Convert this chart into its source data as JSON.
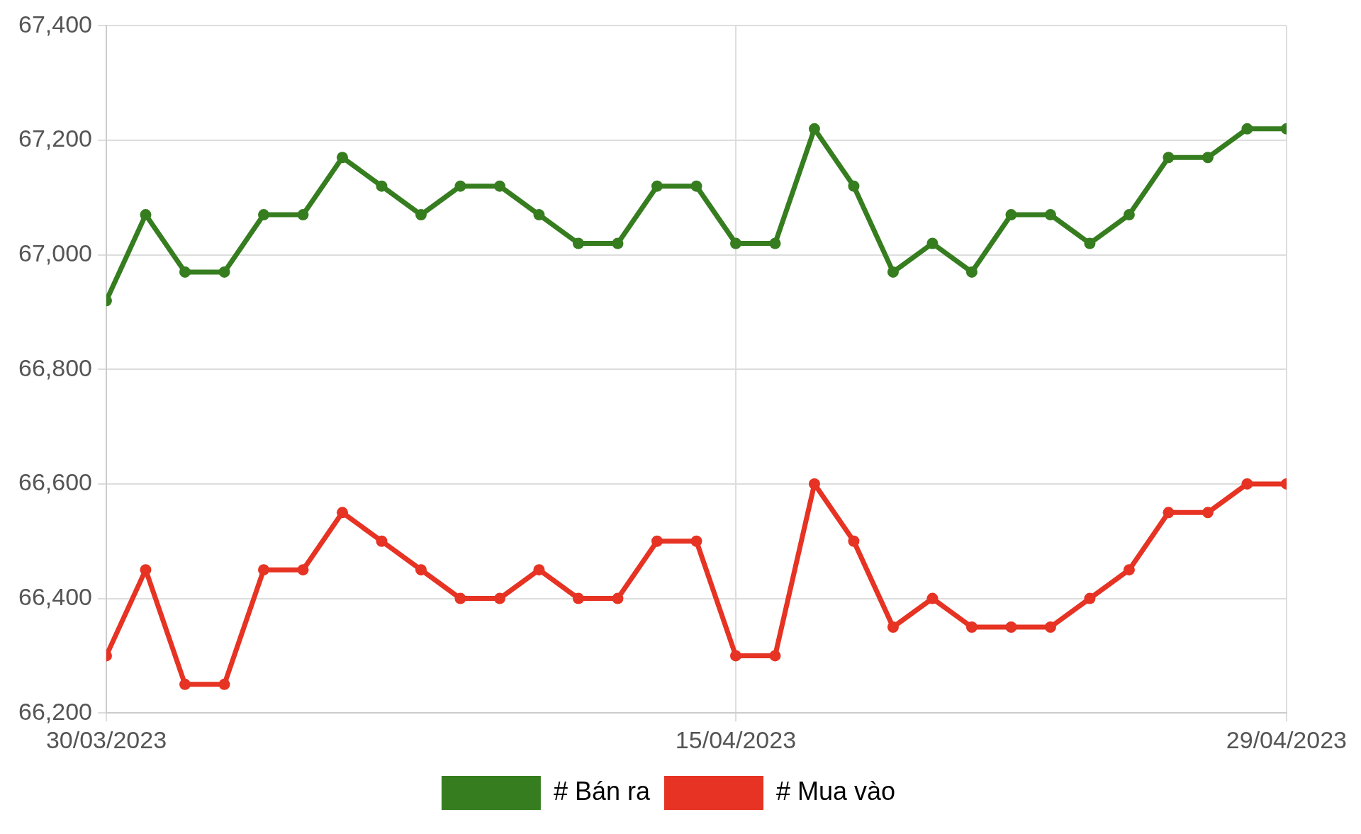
{
  "chart_data": {
    "type": "line",
    "x": [
      "2023-03-30",
      "2023-03-31",
      "2023-04-01",
      "2023-04-02",
      "2023-04-03",
      "2023-04-04",
      "2023-04-05",
      "2023-04-06",
      "2023-04-07",
      "2023-04-08",
      "2023-04-09",
      "2023-04-10",
      "2023-04-11",
      "2023-04-12",
      "2023-04-13",
      "2023-04-14",
      "2023-04-15",
      "2023-04-16",
      "2023-04-17",
      "2023-04-18",
      "2023-04-19",
      "2023-04-20",
      "2023-04-21",
      "2023-04-22",
      "2023-04-23",
      "2023-04-24",
      "2023-04-25",
      "2023-04-26",
      "2023-04-27",
      "2023-04-28",
      "2023-04-29"
    ],
    "series": [
      {
        "name": "# Bán ra",
        "color": "#367d1f",
        "values": [
          66920,
          67070,
          66970,
          66970,
          67070,
          67070,
          67170,
          67120,
          67070,
          67120,
          67120,
          67070,
          67020,
          67020,
          67120,
          67120,
          67020,
          67020,
          67220,
          67120,
          66970,
          67020,
          66970,
          67070,
          67070,
          67020,
          67070,
          67170,
          67170,
          67220,
          67220
        ]
      },
      {
        "name": "# Mua vào",
        "color": "#e63323",
        "values": [
          66300,
          66450,
          66250,
          66250,
          66450,
          66450,
          66550,
          66500,
          66450,
          66400,
          66400,
          66450,
          66400,
          66400,
          66500,
          66500,
          66300,
          66300,
          66600,
          66500,
          66350,
          66400,
          66350,
          66350,
          66350,
          66400,
          66450,
          66550,
          66550,
          66600,
          66600
        ]
      }
    ],
    "xlim": [
      "2023-03-30",
      "2023-04-29"
    ],
    "xticks": [
      {
        "value": "2023-03-30",
        "label": "30/03/2023"
      },
      {
        "value": "2023-04-15",
        "label": "15/04/2023"
      },
      {
        "value": "2023-04-29",
        "label": "29/04/2023"
      }
    ],
    "ylim": [
      66200,
      67400
    ],
    "yticks": [
      {
        "value": 66200,
        "label": "66,200"
      },
      {
        "value": 66400,
        "label": "66,400"
      },
      {
        "value": 66600,
        "label": "66,600"
      },
      {
        "value": 66800,
        "label": "66,800"
      },
      {
        "value": 67000,
        "label": "67,000"
      },
      {
        "value": 67200,
        "label": "67,200"
      },
      {
        "value": 67400,
        "label": "67,400"
      }
    ],
    "grid": true,
    "legend": "bottom",
    "marker": "circle",
    "line_style": "solid"
  }
}
